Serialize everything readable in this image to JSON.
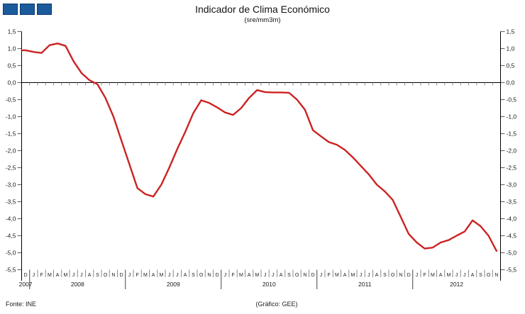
{
  "header": {
    "title": "Indicador de Clima Económico",
    "subtitle": "(sre/mm3m)",
    "logo": {
      "count": 3,
      "fill": "#1a5b9b",
      "border": "#0d3b70"
    }
  },
  "footer": {
    "source": "Fonte: INE",
    "credit": "(Gráfico: GEE)"
  },
  "chart_data": {
    "type": "line",
    "title": "Indicador de Clima Económico",
    "subtitle": "(sre/mm3m)",
    "legend_position": "none",
    "grid": false,
    "zero_axis_line": true,
    "y_axis_sides": [
      "left",
      "right"
    ],
    "ylim": [
      -5.5,
      1.5
    ],
    "y_tick_step": 0.5,
    "y_tick_labels": [
      "1,5",
      "1,0",
      "0,5",
      "0,0",
      "-0,5",
      "-1,0",
      "-1,5",
      "-2,0",
      "-2,5",
      "-3,0",
      "-3,5",
      "-4,0",
      "-4,5",
      "-5,0",
      "-5,5"
    ],
    "x_months": [
      "D",
      "J",
      "F",
      "M",
      "A",
      "M",
      "J",
      "J",
      "A",
      "S",
      "O",
      "N",
      "D",
      "J",
      "F",
      "M",
      "A",
      "M",
      "J",
      "J",
      "A",
      "S",
      "O",
      "N",
      "D",
      "J",
      "F",
      "M",
      "A",
      "M",
      "J",
      "J",
      "A",
      "S",
      "O",
      "N",
      "D",
      "J",
      "F",
      "M",
      "A",
      "M",
      "J",
      "J",
      "A",
      "S",
      "O",
      "N",
      "D",
      "J",
      "F",
      "M",
      "A",
      "M",
      "J",
      "J",
      "A",
      "S",
      "O",
      "N"
    ],
    "x_years": [
      {
        "label": "2007",
        "months": 1
      },
      {
        "label": "2008",
        "months": 12
      },
      {
        "label": "2009",
        "months": 12
      },
      {
        "label": "2010",
        "months": 12
      },
      {
        "label": "2011",
        "months": 12
      },
      {
        "label": "2012",
        "months": 11
      }
    ],
    "series": [
      {
        "name": "Indicador de Clima Económico (sre/mm3m)",
        "color": "#cc2222",
        "values": [
          0.95,
          0.9,
          0.87,
          1.1,
          1.15,
          1.08,
          0.63,
          0.28,
          0.07,
          -0.05,
          -0.45,
          -1.0,
          -1.7,
          -2.4,
          -3.1,
          -3.28,
          -3.35,
          -3.0,
          -2.5,
          -1.95,
          -1.45,
          -0.9,
          -0.52,
          -0.6,
          -0.73,
          -0.88,
          -0.95,
          -0.75,
          -0.45,
          -0.22,
          -0.28,
          -0.29,
          -0.29,
          -0.3,
          -0.5,
          -0.8,
          -1.4,
          -1.58,
          -1.75,
          -1.83,
          -1.98,
          -2.2,
          -2.45,
          -2.7,
          -3.0,
          -3.2,
          -3.45,
          -3.95,
          -4.45,
          -4.7,
          -4.88,
          -4.85,
          -4.7,
          -4.63,
          -4.5,
          -4.38,
          -4.05,
          -4.22,
          -4.5,
          -4.95
        ]
      }
    ]
  }
}
